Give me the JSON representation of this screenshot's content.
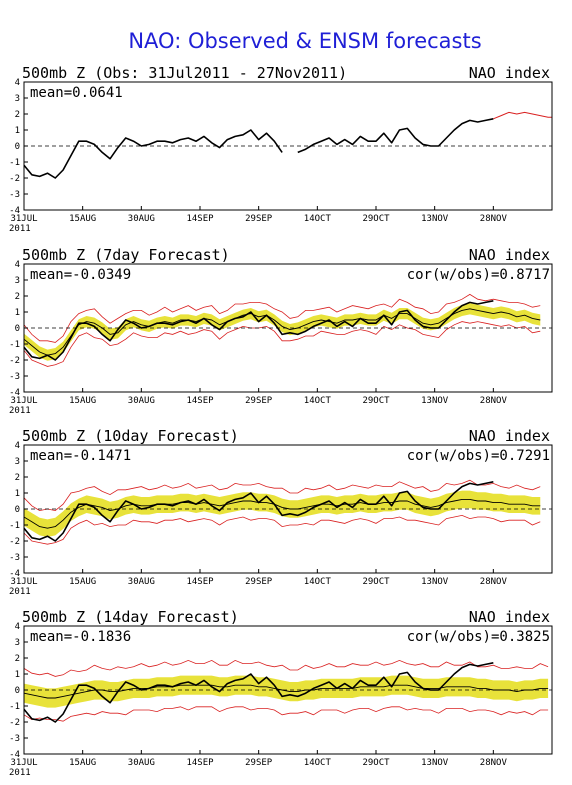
{
  "page": {
    "title": "NAO: Observed & ENSM forecasts",
    "title_color": "#1f1fd6"
  },
  "x_axis": {
    "tick_labels": [
      "31JUL",
      "15AUG",
      "30AUG",
      "14SEP",
      "29SEP",
      "14OCT",
      "29OCT",
      "13NOV",
      "28NOV"
    ],
    "tick_days": [
      0,
      15,
      30,
      45,
      60,
      75,
      90,
      105,
      120
    ],
    "year_label": "2011",
    "range_days": [
      0,
      135
    ]
  },
  "y_axis": {
    "tick_labels": [
      "4",
      "3",
      "2",
      "1",
      "0",
      "-1",
      "-2",
      "-3",
      "-4"
    ],
    "range": [
      -4,
      4
    ]
  },
  "colors": {
    "observed": "#000000",
    "forecast_mean": "#000000",
    "spread_band": "#e8e23a",
    "envelope": "#d92020",
    "zero_line": "#000000"
  },
  "chart_data": [
    {
      "type": "line",
      "header_left": "500mb Z (Obs: 31Jul2011 - 27Nov2011)",
      "header_right": "NAO index",
      "mean_label": "mean=0.0641",
      "cor_label": "",
      "series": [
        {
          "role": "observed",
          "x": [
            0,
            2,
            4,
            6,
            8,
            10,
            12,
            14,
            16,
            18,
            20,
            22,
            24,
            26,
            28,
            30,
            32,
            34,
            36,
            38,
            40,
            42,
            44,
            46,
            48,
            50,
            52,
            54,
            56,
            58,
            60,
            62,
            64,
            66,
            68,
            70,
            72,
            74,
            76,
            78,
            80,
            82,
            84,
            86,
            88,
            90,
            92,
            94,
            96,
            98,
            100,
            102,
            104,
            106,
            108,
            110,
            112,
            114,
            116,
            118,
            120
          ],
          "y": [
            -1.2,
            -1.8,
            -1.9,
            -1.7,
            -2.0,
            -1.5,
            -0.6,
            0.3,
            0.3,
            0.1,
            -0.4,
            -0.8,
            -0.1,
            0.5,
            0.3,
            0.0,
            0.1,
            0.3,
            0.3,
            0.2,
            0.4,
            0.5,
            0.3,
            0.6,
            0.2,
            -0.1,
            0.4,
            0.6,
            0.7,
            1.0,
            0.4,
            0.8,
            0.3,
            -0.4,
            null,
            -0.4,
            -0.2,
            0.1,
            0.3,
            0.5,
            0.1,
            0.4,
            0.1,
            0.6,
            0.3,
            0.3,
            0.8,
            0.2,
            1.0,
            1.1,
            0.5,
            0.1,
            0.0,
            0.0,
            0.5,
            1.0,
            1.4,
            1.6,
            1.5,
            1.6,
            1.7
          ]
        },
        {
          "role": "envelope",
          "x": [
            120,
            122,
            124,
            126,
            128,
            130,
            132,
            134,
            135
          ],
          "y": [
            1.7,
            1.9,
            2.1,
            2.0,
            2.1,
            2.0,
            1.9,
            1.8,
            1.8
          ]
        }
      ]
    },
    {
      "type": "line",
      "header_left": "500mb Z (7day Forecast)",
      "header_right": "NAO index",
      "mean_label": "mean=-0.0349",
      "cor_label": "cor(w/obs)=0.8717",
      "spread_width": 0.35,
      "envelope_width": 0.75,
      "series": [
        {
          "role": "forecast_mean",
          "x": [
            0,
            2,
            4,
            6,
            8,
            10,
            12,
            14,
            16,
            18,
            20,
            22,
            24,
            26,
            28,
            30,
            32,
            34,
            36,
            38,
            40,
            42,
            44,
            46,
            48,
            50,
            52,
            54,
            56,
            58,
            60,
            62,
            64,
            66,
            68,
            70,
            72,
            74,
            76,
            78,
            80,
            82,
            84,
            86,
            88,
            90,
            92,
            94,
            96,
            98,
            100,
            102,
            104,
            106,
            108,
            110,
            112,
            114,
            116,
            118,
            120,
            122,
            124,
            126,
            128,
            130,
            132
          ],
          "y": [
            -0.7,
            -1.1,
            -1.5,
            -1.7,
            -1.6,
            -1.2,
            -0.5,
            0.2,
            0.4,
            0.3,
            0.0,
            -0.4,
            -0.3,
            0.2,
            0.4,
            0.2,
            0.1,
            0.3,
            0.4,
            0.3,
            0.5,
            0.5,
            0.4,
            0.6,
            0.5,
            0.2,
            0.4,
            0.6,
            0.8,
            0.9,
            0.7,
            0.8,
            0.5,
            0.1,
            -0.1,
            0.0,
            0.2,
            0.4,
            0.5,
            0.4,
            0.3,
            0.5,
            0.5,
            0.6,
            0.5,
            0.5,
            0.8,
            0.6,
            0.9,
            0.9,
            0.6,
            0.3,
            0.2,
            0.3,
            0.6,
            0.9,
            1.1,
            1.2,
            1.1,
            1.0,
            0.9,
            1.0,
            0.9,
            0.7,
            0.8,
            0.6,
            0.5
          ]
        },
        {
          "role": "observed",
          "x": [
            0,
            2,
            4,
            6,
            8,
            10,
            12,
            14,
            16,
            18,
            20,
            22,
            24,
            26,
            28,
            30,
            32,
            34,
            36,
            38,
            40,
            42,
            44,
            46,
            48,
            50,
            52,
            54,
            56,
            58,
            60,
            62,
            64,
            66,
            68,
            70,
            72,
            74,
            76,
            78,
            80,
            82,
            84,
            86,
            88,
            90,
            92,
            94,
            96,
            98,
            100,
            102,
            104,
            106,
            108,
            110,
            112,
            114,
            116,
            118,
            120
          ],
          "y": [
            -1.2,
            -1.8,
            -1.9,
            -1.7,
            -2.0,
            -1.5,
            -0.6,
            0.3,
            0.3,
            0.1,
            -0.4,
            -0.8,
            -0.1,
            0.5,
            0.3,
            0.0,
            0.1,
            0.3,
            0.3,
            0.2,
            0.4,
            0.5,
            0.3,
            0.6,
            0.2,
            -0.1,
            0.4,
            0.6,
            0.7,
            1.0,
            0.4,
            0.8,
            0.3,
            -0.4,
            -0.3,
            -0.4,
            -0.2,
            0.1,
            0.3,
            0.5,
            0.1,
            0.4,
            0.1,
            0.6,
            0.3,
            0.3,
            0.8,
            0.2,
            1.0,
            1.1,
            0.5,
            0.1,
            0.0,
            0.0,
            0.5,
            1.0,
            1.4,
            1.6,
            1.5,
            1.6,
            1.7
          ]
        }
      ]
    },
    {
      "type": "line",
      "header_left": "500mb Z (10day Forecast)",
      "header_right": "NAO index",
      "mean_label": "mean=-0.1471",
      "cor_label": "cor(w/obs)=0.7291",
      "spread_width": 0.55,
      "envelope_width": 1.05,
      "series": [
        {
          "role": "forecast_mean",
          "x": [
            0,
            2,
            4,
            6,
            8,
            10,
            12,
            14,
            16,
            18,
            20,
            22,
            24,
            26,
            28,
            30,
            32,
            34,
            36,
            38,
            40,
            42,
            44,
            46,
            48,
            50,
            52,
            54,
            56,
            58,
            60,
            62,
            64,
            66,
            68,
            70,
            72,
            74,
            76,
            78,
            80,
            82,
            84,
            86,
            88,
            90,
            92,
            94,
            96,
            98,
            100,
            102,
            104,
            106,
            108,
            110,
            112,
            114,
            116,
            118,
            120,
            122,
            124,
            126,
            128,
            130,
            132
          ],
          "y": [
            -0.5,
            -0.8,
            -1.1,
            -1.2,
            -1.1,
            -0.7,
            -0.2,
            0.1,
            0.3,
            0.2,
            0.1,
            -0.1,
            0.0,
            0.2,
            0.3,
            0.2,
            0.2,
            0.3,
            0.3,
            0.3,
            0.4,
            0.4,
            0.3,
            0.4,
            0.3,
            0.2,
            0.3,
            0.4,
            0.5,
            0.5,
            0.4,
            0.4,
            0.3,
            0.1,
            0.0,
            0.0,
            0.1,
            0.2,
            0.3,
            0.3,
            0.2,
            0.3,
            0.3,
            0.4,
            0.3,
            0.3,
            0.4,
            0.4,
            0.5,
            0.5,
            0.3,
            0.2,
            0.1,
            0.2,
            0.4,
            0.5,
            0.6,
            0.6,
            0.5,
            0.5,
            0.4,
            0.4,
            0.3,
            0.3,
            0.3,
            0.2,
            0.2
          ]
        },
        {
          "role": "observed",
          "x": [
            0,
            2,
            4,
            6,
            8,
            10,
            12,
            14,
            16,
            18,
            20,
            22,
            24,
            26,
            28,
            30,
            32,
            34,
            36,
            38,
            40,
            42,
            44,
            46,
            48,
            50,
            52,
            54,
            56,
            58,
            60,
            62,
            64,
            66,
            68,
            70,
            72,
            74,
            76,
            78,
            80,
            82,
            84,
            86,
            88,
            90,
            92,
            94,
            96,
            98,
            100,
            102,
            104,
            106,
            108,
            110,
            112,
            114,
            116,
            118,
            120
          ],
          "y": [
            -1.2,
            -1.8,
            -1.9,
            -1.7,
            -2.0,
            -1.5,
            -0.6,
            0.3,
            0.3,
            0.1,
            -0.4,
            -0.8,
            -0.1,
            0.5,
            0.3,
            0.0,
            0.1,
            0.3,
            0.3,
            0.2,
            0.4,
            0.5,
            0.3,
            0.6,
            0.2,
            -0.1,
            0.4,
            0.6,
            0.7,
            1.0,
            0.4,
            0.8,
            0.3,
            -0.4,
            -0.3,
            -0.4,
            -0.2,
            0.1,
            0.3,
            0.5,
            0.1,
            0.4,
            0.1,
            0.6,
            0.3,
            0.3,
            0.8,
            0.2,
            1.0,
            1.1,
            0.5,
            0.1,
            0.0,
            0.0,
            0.5,
            1.0,
            1.4,
            1.6,
            1.5,
            1.6,
            1.7
          ]
        }
      ]
    },
    {
      "type": "line",
      "header_left": "500mb Z (14day Forecast)",
      "header_right": "NAO index",
      "mean_label": "mean=-0.1836",
      "cor_label": "cor(w/obs)=0.3825",
      "spread_width": 0.6,
      "envelope_width": 1.4,
      "series": [
        {
          "role": "forecast_mean",
          "x": [
            0,
            2,
            4,
            6,
            8,
            10,
            12,
            14,
            16,
            18,
            20,
            22,
            24,
            26,
            28,
            30,
            32,
            34,
            36,
            38,
            40,
            42,
            44,
            46,
            48,
            50,
            52,
            54,
            56,
            58,
            60,
            62,
            64,
            66,
            68,
            70,
            72,
            74,
            76,
            78,
            80,
            82,
            84,
            86,
            88,
            90,
            92,
            94,
            96,
            98,
            100,
            102,
            104,
            106,
            108,
            110,
            112,
            114,
            116,
            118,
            120,
            122,
            124,
            126,
            128,
            130,
            132,
            134
          ],
          "y": [
            -0.2,
            -0.3,
            -0.4,
            -0.5,
            -0.5,
            -0.4,
            -0.3,
            -0.2,
            -0.1,
            0.0,
            0.0,
            -0.1,
            -0.1,
            0.0,
            0.1,
            0.1,
            0.1,
            0.2,
            0.2,
            0.2,
            0.3,
            0.3,
            0.3,
            0.3,
            0.3,
            0.2,
            0.2,
            0.3,
            0.3,
            0.3,
            0.2,
            0.2,
            0.1,
            0.0,
            -0.1,
            -0.1,
            0.0,
            0.0,
            0.1,
            0.1,
            0.1,
            0.1,
            0.1,
            0.2,
            0.2,
            0.2,
            0.2,
            0.3,
            0.3,
            0.3,
            0.2,
            0.1,
            0.1,
            0.1,
            0.2,
            0.2,
            0.2,
            0.2,
            0.1,
            0.1,
            0.0,
            0.0,
            0.0,
            -0.1,
            0.0,
            0.0,
            0.1,
            0.1
          ]
        },
        {
          "role": "observed",
          "x": [
            0,
            2,
            4,
            6,
            8,
            10,
            12,
            14,
            16,
            18,
            20,
            22,
            24,
            26,
            28,
            30,
            32,
            34,
            36,
            38,
            40,
            42,
            44,
            46,
            48,
            50,
            52,
            54,
            56,
            58,
            60,
            62,
            64,
            66,
            68,
            70,
            72,
            74,
            76,
            78,
            80,
            82,
            84,
            86,
            88,
            90,
            92,
            94,
            96,
            98,
            100,
            102,
            104,
            106,
            108,
            110,
            112,
            114,
            116,
            118,
            120
          ],
          "y": [
            -1.2,
            -1.8,
            -1.9,
            -1.7,
            -2.0,
            -1.5,
            -0.6,
            0.3,
            0.3,
            0.1,
            -0.4,
            -0.8,
            -0.1,
            0.5,
            0.3,
            0.0,
            0.1,
            0.3,
            0.3,
            0.2,
            0.4,
            0.5,
            0.3,
            0.6,
            0.2,
            -0.1,
            0.4,
            0.6,
            0.7,
            1.0,
            0.4,
            0.8,
            0.3,
            -0.4,
            -0.3,
            -0.4,
            -0.2,
            0.1,
            0.3,
            0.5,
            0.1,
            0.4,
            0.1,
            0.6,
            0.3,
            0.3,
            0.8,
            0.2,
            1.0,
            1.1,
            0.5,
            0.1,
            0.0,
            0.0,
            0.5,
            1.0,
            1.4,
            1.6,
            1.5,
            1.6,
            1.7
          ]
        }
      ]
    }
  ]
}
